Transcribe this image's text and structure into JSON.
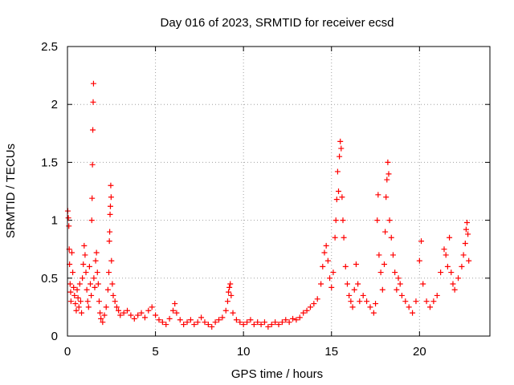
{
  "chart_data": {
    "type": "scatter",
    "title": "Day 016 of 2023, SRMTID for receiver ecsd",
    "xlabel": "GPS time / hours",
    "ylabel": "SRMTID / TECUs",
    "xlim": [
      0,
      24
    ],
    "ylim": [
      0,
      2.5
    ],
    "xticks": [
      0,
      5,
      10,
      15,
      20
    ],
    "xtick_labels": [
      "0",
      "5",
      "10",
      "15",
      "20"
    ],
    "yticks": [
      0,
      0.5,
      1,
      1.5,
      2,
      2.5
    ],
    "ytick_labels": [
      "0",
      "0.5",
      "1",
      "1.5",
      "2",
      "2.5"
    ],
    "grid": true,
    "marker": "+",
    "color": "#ff0000",
    "series": [
      {
        "name": "SRMTID",
        "points": [
          [
            0.02,
            1.08
          ],
          [
            0.05,
            1.02
          ],
          [
            0.08,
            0.95
          ],
          [
            0.1,
            0.75
          ],
          [
            0.12,
            0.62
          ],
          [
            0.15,
            0.45
          ],
          [
            0.18,
            0.38
          ],
          [
            0.2,
            0.3
          ],
          [
            0.25,
            0.72
          ],
          [
            0.3,
            0.55
          ],
          [
            0.35,
            0.42
          ],
          [
            0.4,
            0.35
          ],
          [
            0.45,
            0.28
          ],
          [
            0.5,
            0.22
          ],
          [
            0.55,
            0.4
          ],
          [
            0.6,
            0.33
          ],
          [
            0.65,
            0.25
          ],
          [
            0.7,
            0.45
          ],
          [
            0.75,
            0.3
          ],
          [
            0.8,
            0.2
          ],
          [
            0.85,
            0.5
          ],
          [
            0.9,
            0.62
          ],
          [
            0.95,
            0.78
          ],
          [
            1.0,
            0.7
          ],
          [
            1.05,
            0.55
          ],
          [
            1.1,
            0.4
          ],
          [
            1.15,
            0.3
          ],
          [
            1.2,
            0.25
          ],
          [
            1.25,
            0.6
          ],
          [
            1.3,
            0.45
          ],
          [
            1.35,
            0.35
          ],
          [
            1.38,
            1.0
          ],
          [
            1.4,
            1.19
          ],
          [
            1.42,
            1.48
          ],
          [
            1.44,
            1.78
          ],
          [
            1.46,
            2.02
          ],
          [
            1.48,
            2.18
          ],
          [
            1.5,
            0.5
          ],
          [
            1.55,
            0.42
          ],
          [
            1.6,
            0.65
          ],
          [
            1.65,
            0.72
          ],
          [
            1.7,
            0.55
          ],
          [
            1.75,
            0.45
          ],
          [
            1.8,
            0.3
          ],
          [
            1.85,
            0.2
          ],
          [
            1.9,
            0.15
          ],
          [
            2.0,
            0.12
          ],
          [
            2.1,
            0.18
          ],
          [
            2.2,
            0.25
          ],
          [
            2.3,
            0.4
          ],
          [
            2.35,
            0.55
          ],
          [
            2.38,
            0.82
          ],
          [
            2.4,
            0.9
          ],
          [
            2.42,
            1.05
          ],
          [
            2.44,
            1.12
          ],
          [
            2.46,
            1.3
          ],
          [
            2.48,
            1.2
          ],
          [
            2.5,
            0.65
          ],
          [
            2.55,
            0.45
          ],
          [
            2.6,
            0.35
          ],
          [
            2.7,
            0.3
          ],
          [
            2.8,
            0.25
          ],
          [
            2.9,
            0.22
          ],
          [
            3.0,
            0.18
          ],
          [
            3.2,
            0.2
          ],
          [
            3.4,
            0.22
          ],
          [
            3.6,
            0.18
          ],
          [
            3.8,
            0.15
          ],
          [
            4.0,
            0.18
          ],
          [
            4.2,
            0.2
          ],
          [
            4.4,
            0.16
          ],
          [
            4.6,
            0.22
          ],
          [
            4.8,
            0.25
          ],
          [
            5.0,
            0.18
          ],
          [
            5.2,
            0.14
          ],
          [
            5.4,
            0.12
          ],
          [
            5.6,
            0.1
          ],
          [
            5.8,
            0.15
          ],
          [
            6.0,
            0.22
          ],
          [
            6.1,
            0.28
          ],
          [
            6.2,
            0.2
          ],
          [
            6.4,
            0.14
          ],
          [
            6.6,
            0.1
          ],
          [
            6.8,
            0.12
          ],
          [
            7.0,
            0.14
          ],
          [
            7.2,
            0.1
          ],
          [
            7.4,
            0.12
          ],
          [
            7.6,
            0.16
          ],
          [
            7.8,
            0.12
          ],
          [
            8.0,
            0.1
          ],
          [
            8.2,
            0.08
          ],
          [
            8.4,
            0.12
          ],
          [
            8.6,
            0.14
          ],
          [
            8.8,
            0.16
          ],
          [
            9.0,
            0.22
          ],
          [
            9.1,
            0.3
          ],
          [
            9.15,
            0.38
          ],
          [
            9.2,
            0.42
          ],
          [
            9.25,
            0.45
          ],
          [
            9.3,
            0.35
          ],
          [
            9.4,
            0.2
          ],
          [
            9.6,
            0.14
          ],
          [
            9.8,
            0.12
          ],
          [
            10.0,
            0.1
          ],
          [
            10.2,
            0.12
          ],
          [
            10.4,
            0.14
          ],
          [
            10.6,
            0.1
          ],
          [
            10.8,
            0.12
          ],
          [
            11.0,
            0.1
          ],
          [
            11.2,
            0.12
          ],
          [
            11.4,
            0.08
          ],
          [
            11.6,
            0.1
          ],
          [
            11.8,
            0.12
          ],
          [
            12.0,
            0.1
          ],
          [
            12.2,
            0.12
          ],
          [
            12.4,
            0.14
          ],
          [
            12.6,
            0.12
          ],
          [
            12.8,
            0.15
          ],
          [
            13.0,
            0.14
          ],
          [
            13.2,
            0.16
          ],
          [
            13.4,
            0.2
          ],
          [
            13.6,
            0.22
          ],
          [
            13.8,
            0.25
          ],
          [
            14.0,
            0.28
          ],
          [
            14.2,
            0.32
          ],
          [
            14.4,
            0.45
          ],
          [
            14.5,
            0.6
          ],
          [
            14.6,
            0.72
          ],
          [
            14.7,
            0.78
          ],
          [
            14.8,
            0.65
          ],
          [
            14.9,
            0.5
          ],
          [
            15.0,
            0.42
          ],
          [
            15.1,
            0.55
          ],
          [
            15.2,
            0.85
          ],
          [
            15.25,
            1.0
          ],
          [
            15.3,
            1.18
          ],
          [
            15.35,
            1.42
          ],
          [
            15.4,
            1.25
          ],
          [
            15.45,
            1.55
          ],
          [
            15.5,
            1.68
          ],
          [
            15.55,
            1.62
          ],
          [
            15.6,
            1.2
          ],
          [
            15.65,
            1.0
          ],
          [
            15.7,
            0.85
          ],
          [
            15.8,
            0.6
          ],
          [
            15.9,
            0.45
          ],
          [
            16.0,
            0.35
          ],
          [
            16.1,
            0.3
          ],
          [
            16.2,
            0.25
          ],
          [
            16.3,
            0.4
          ],
          [
            16.4,
            0.62
          ],
          [
            16.5,
            0.45
          ],
          [
            16.6,
            0.3
          ],
          [
            16.8,
            0.35
          ],
          [
            17.0,
            0.3
          ],
          [
            17.2,
            0.25
          ],
          [
            17.4,
            0.2
          ],
          [
            17.5,
            0.28
          ],
          [
            17.6,
            1.0
          ],
          [
            17.65,
            1.22
          ],
          [
            17.7,
            0.7
          ],
          [
            17.8,
            0.55
          ],
          [
            17.9,
            0.4
          ],
          [
            18.0,
            0.62
          ],
          [
            18.05,
            0.9
          ],
          [
            18.1,
            1.2
          ],
          [
            18.15,
            1.35
          ],
          [
            18.2,
            1.5
          ],
          [
            18.25,
            1.4
          ],
          [
            18.3,
            1.0
          ],
          [
            18.4,
            0.85
          ],
          [
            18.5,
            0.7
          ],
          [
            18.6,
            0.55
          ],
          [
            18.7,
            0.4
          ],
          [
            18.8,
            0.5
          ],
          [
            18.9,
            0.45
          ],
          [
            19.0,
            0.35
          ],
          [
            19.2,
            0.3
          ],
          [
            19.4,
            0.25
          ],
          [
            19.6,
            0.2
          ],
          [
            19.8,
            0.3
          ],
          [
            20.0,
            0.65
          ],
          [
            20.1,
            0.82
          ],
          [
            20.2,
            0.45
          ],
          [
            20.4,
            0.3
          ],
          [
            20.6,
            0.25
          ],
          [
            20.8,
            0.3
          ],
          [
            21.0,
            0.35
          ],
          [
            21.2,
            0.55
          ],
          [
            21.4,
            0.75
          ],
          [
            21.5,
            0.7
          ],
          [
            21.6,
            0.6
          ],
          [
            21.7,
            0.85
          ],
          [
            21.8,
            0.55
          ],
          [
            21.9,
            0.45
          ],
          [
            22.0,
            0.4
          ],
          [
            22.2,
            0.5
          ],
          [
            22.4,
            0.6
          ],
          [
            22.5,
            0.7
          ],
          [
            22.6,
            0.8
          ],
          [
            22.65,
            0.92
          ],
          [
            22.7,
            0.98
          ],
          [
            22.75,
            0.88
          ],
          [
            22.8,
            0.65
          ]
        ]
      }
    ]
  }
}
